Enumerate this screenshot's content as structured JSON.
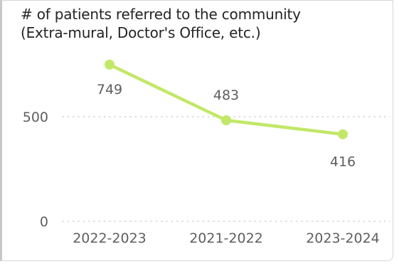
{
  "chart_data": {
    "type": "line",
    "title_lines": [
      "# of patients referred to the community",
      "(Extra-mural, Doctor's Office, etc.)"
    ],
    "categories": [
      "2022-2023",
      "2021-2022",
      "2023-2024"
    ],
    "series": [
      {
        "values": [
          749,
          483,
          416
        ],
        "color": "#c2e868"
      }
    ],
    "data_labels": [
      "749",
      "483",
      "416"
    ],
    "y_ticks": [
      {
        "value": 0,
        "label": "0"
      },
      {
        "value": 500,
        "label": "500"
      }
    ],
    "ylim": [
      0,
      1000
    ],
    "grid": true,
    "grid_color": "#c8c6c4",
    "xlabel": "",
    "ylabel": ""
  }
}
